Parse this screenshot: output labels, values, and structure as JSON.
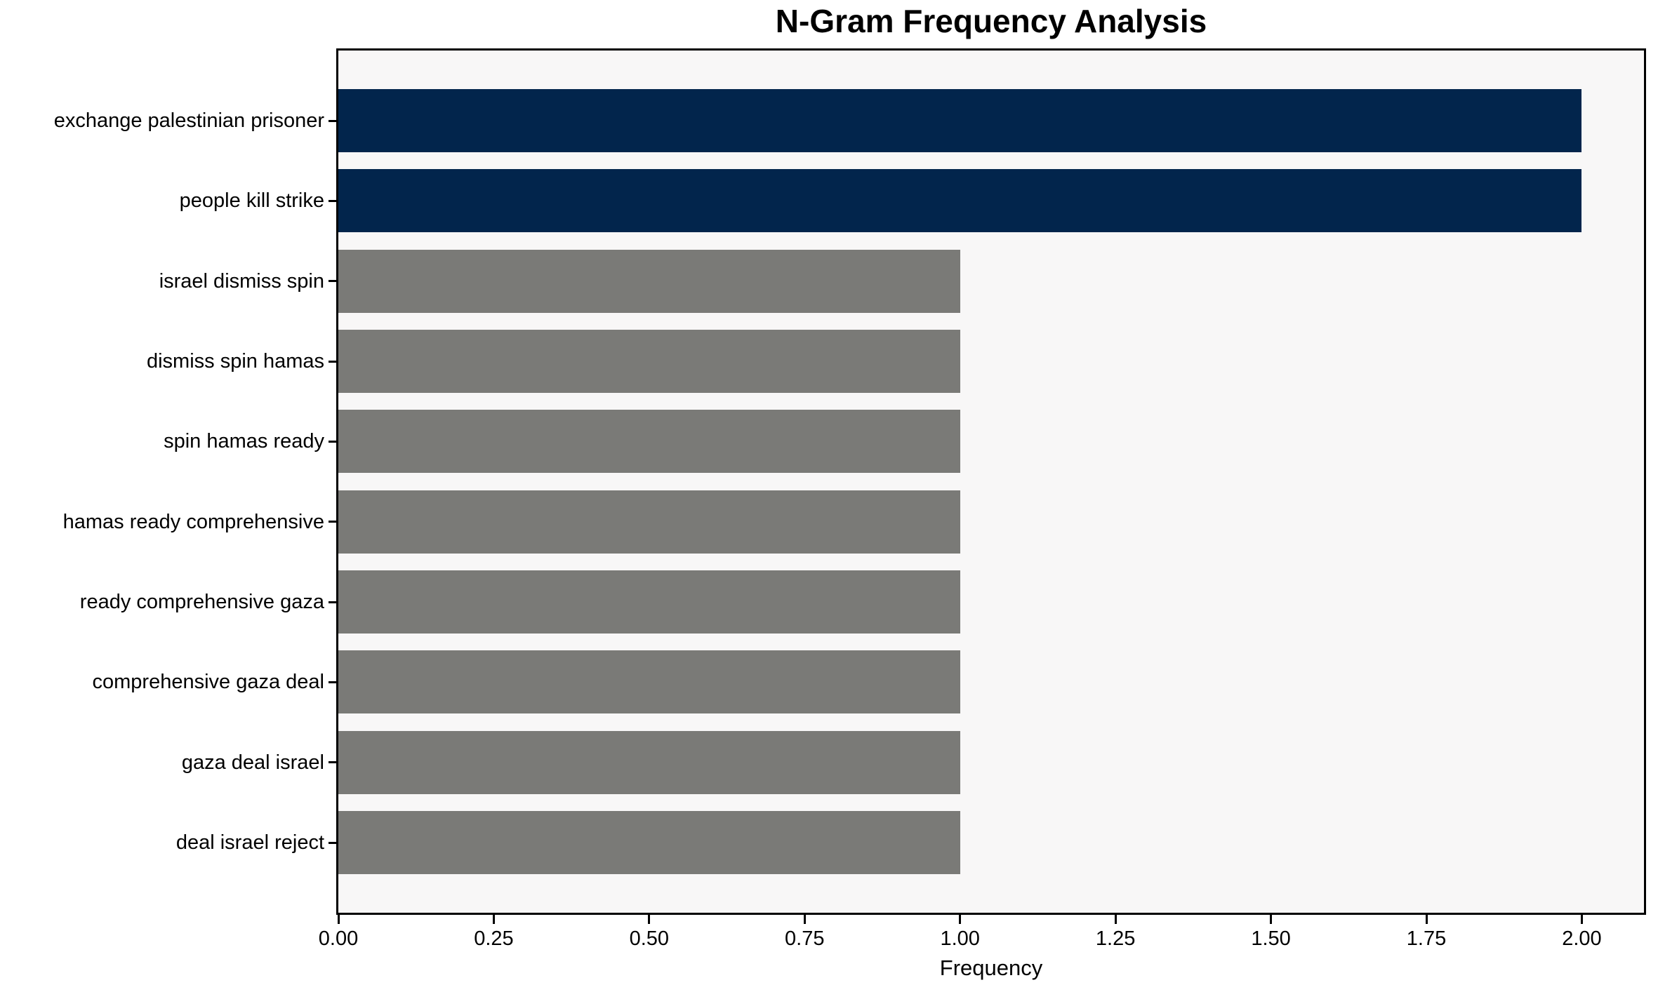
{
  "chart_data": {
    "type": "bar",
    "orientation": "horizontal",
    "title": "N-Gram Frequency Analysis",
    "xlabel": "Frequency",
    "ylabel": "",
    "categories": [
      "exchange palestinian prisoner",
      "people kill strike",
      "israel dismiss spin",
      "dismiss spin hamas",
      "spin hamas ready",
      "hamas ready comprehensive",
      "ready comprehensive gaza",
      "comprehensive gaza deal",
      "gaza deal israel",
      "deal israel reject"
    ],
    "values": [
      2,
      2,
      1,
      1,
      1,
      1,
      1,
      1,
      1,
      1
    ],
    "bar_colors": [
      "#02254c",
      "#02254c",
      "#7a7a77",
      "#7a7a77",
      "#7a7a77",
      "#7a7a77",
      "#7a7a77",
      "#7a7a77",
      "#7a7a77",
      "#7a7a77"
    ],
    "xlim": [
      0,
      2.1
    ],
    "xtick_values": [
      0,
      0.25,
      0.5,
      0.75,
      1.0,
      1.25,
      1.5,
      1.75,
      2.0
    ],
    "xtick_labels": [
      "0.00",
      "0.25",
      "0.50",
      "0.75",
      "1.00",
      "1.25",
      "1.50",
      "1.75",
      "2.00"
    ],
    "grid": false,
    "legend": "none",
    "colors": {
      "bar_highlight": "#02254c",
      "bar_default": "#7a7a77",
      "plot_background": "#f8f7f7",
      "figure_background": "#ffffff",
      "spine": "#000000",
      "text": "#000000"
    }
  }
}
